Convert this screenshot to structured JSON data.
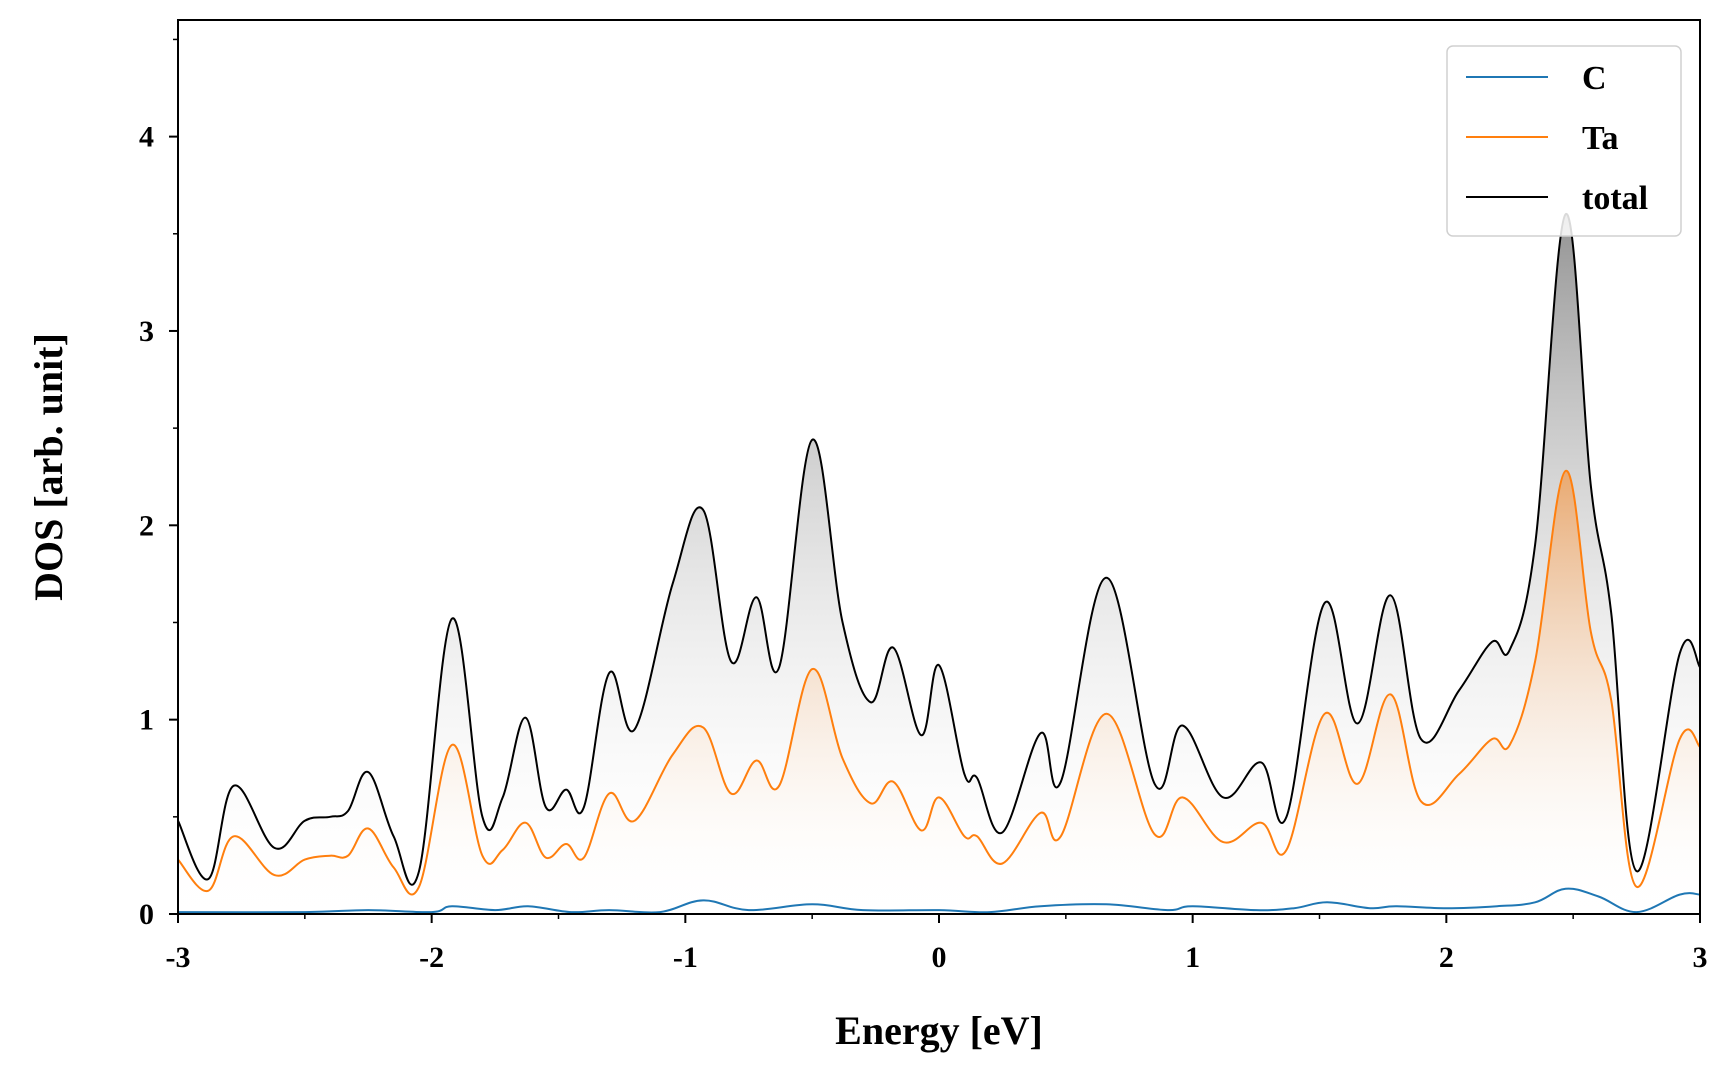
{
  "chart_data": {
    "type": "area",
    "xlabel": "Energy [eV]",
    "ylabel": "DOS [arb. unit]",
    "xlim": [
      -3,
      3
    ],
    "ylim": [
      0,
      4.6
    ],
    "xticks": [
      -3,
      -2,
      -1,
      0,
      1,
      2,
      3
    ],
    "xtick_labels": [
      "-3",
      "-2",
      "-1",
      "0",
      "1",
      "2",
      "3"
    ],
    "yticks": [
      0,
      1,
      2,
      3,
      4
    ],
    "ytick_labels": [
      "0",
      "1",
      "2",
      "3",
      "4"
    ],
    "legend_position": "top-right",
    "grid": false,
    "series": [
      {
        "name": "C",
        "color": "#1f77b4",
        "x": [
          -3.0,
          -2.5,
          -2.25,
          -2.0,
          -1.92,
          -1.75,
          -1.62,
          -1.45,
          -1.3,
          -1.1,
          -0.93,
          -0.75,
          -0.5,
          -0.3,
          0.0,
          0.2,
          0.4,
          0.66,
          0.9,
          1.0,
          1.25,
          1.4,
          1.53,
          1.7,
          1.8,
          2.0,
          2.2,
          2.35,
          2.47,
          2.6,
          2.75,
          2.92,
          3.0
        ],
        "y": [
          0.01,
          0.01,
          0.02,
          0.01,
          0.04,
          0.02,
          0.04,
          0.01,
          0.02,
          0.01,
          0.07,
          0.02,
          0.05,
          0.02,
          0.02,
          0.01,
          0.04,
          0.05,
          0.02,
          0.04,
          0.02,
          0.03,
          0.06,
          0.03,
          0.04,
          0.03,
          0.04,
          0.06,
          0.13,
          0.09,
          0.01,
          0.1,
          0.1
        ]
      },
      {
        "name": "Ta",
        "color": "#ff7f0e",
        "x": [
          -3.0,
          -2.88,
          -2.78,
          -2.62,
          -2.5,
          -2.4,
          -2.33,
          -2.25,
          -2.15,
          -2.05,
          -1.92,
          -1.8,
          -1.72,
          -1.63,
          -1.55,
          -1.47,
          -1.4,
          -1.3,
          -1.2,
          -1.05,
          -0.93,
          -0.82,
          -0.72,
          -0.63,
          -0.5,
          -0.38,
          -0.27,
          -0.18,
          -0.07,
          0.0,
          0.1,
          0.15,
          0.25,
          0.4,
          0.48,
          0.66,
          0.85,
          0.96,
          1.12,
          1.27,
          1.37,
          1.52,
          1.65,
          1.78,
          1.9,
          2.05,
          2.18,
          2.25,
          2.35,
          2.47,
          2.57,
          2.65,
          2.75,
          2.92,
          3.0
        ],
        "y": [
          0.28,
          0.12,
          0.4,
          0.2,
          0.28,
          0.3,
          0.3,
          0.44,
          0.24,
          0.14,
          0.87,
          0.3,
          0.33,
          0.47,
          0.29,
          0.36,
          0.29,
          0.62,
          0.48,
          0.82,
          0.96,
          0.62,
          0.79,
          0.66,
          1.26,
          0.8,
          0.57,
          0.68,
          0.43,
          0.6,
          0.4,
          0.4,
          0.26,
          0.52,
          0.4,
          1.03,
          0.41,
          0.6,
          0.37,
          0.47,
          0.33,
          1.03,
          0.67,
          1.13,
          0.58,
          0.72,
          0.9,
          0.87,
          1.3,
          2.28,
          1.45,
          1.1,
          0.14,
          0.9,
          0.86
        ]
      },
      {
        "name": "total",
        "color": "#000000",
        "x": [
          -3.0,
          -2.88,
          -2.78,
          -2.62,
          -2.5,
          -2.4,
          -2.33,
          -2.25,
          -2.15,
          -2.05,
          -1.92,
          -1.8,
          -1.72,
          -1.63,
          -1.55,
          -1.47,
          -1.4,
          -1.3,
          -1.2,
          -1.05,
          -0.93,
          -0.82,
          -0.72,
          -0.63,
          -0.5,
          -0.38,
          -0.27,
          -0.18,
          -0.07,
          0.0,
          0.1,
          0.15,
          0.25,
          0.4,
          0.48,
          0.66,
          0.85,
          0.96,
          1.12,
          1.27,
          1.37,
          1.52,
          1.65,
          1.78,
          1.9,
          2.05,
          2.18,
          2.25,
          2.35,
          2.47,
          2.57,
          2.65,
          2.75,
          2.92,
          3.0
        ],
        "y": [
          0.48,
          0.18,
          0.66,
          0.34,
          0.48,
          0.5,
          0.53,
          0.73,
          0.4,
          0.22,
          1.52,
          0.5,
          0.6,
          1.01,
          0.55,
          0.64,
          0.55,
          1.24,
          0.95,
          1.7,
          2.08,
          1.3,
          1.63,
          1.27,
          2.44,
          1.5,
          1.09,
          1.37,
          0.92,
          1.28,
          0.72,
          0.7,
          0.42,
          0.93,
          0.68,
          1.73,
          0.67,
          0.97,
          0.6,
          0.78,
          0.5,
          1.6,
          0.98,
          1.64,
          0.9,
          1.15,
          1.4,
          1.36,
          1.9,
          3.6,
          2.2,
          1.55,
          0.22,
          1.34,
          1.27
        ]
      }
    ]
  }
}
